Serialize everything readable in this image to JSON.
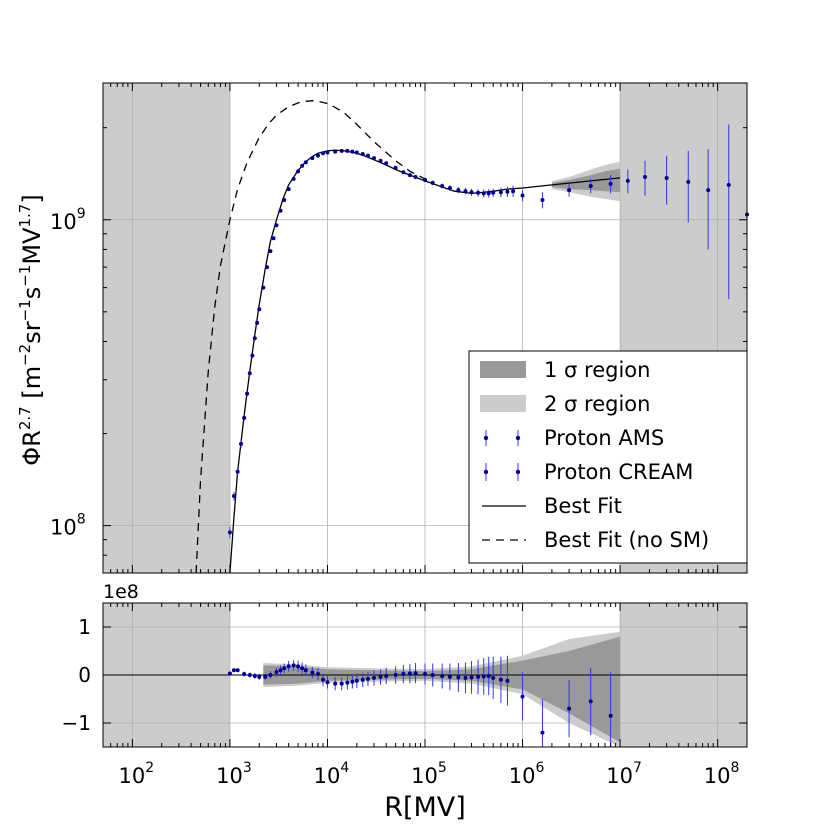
{
  "chart_data": {
    "type": "scatter",
    "x_scale": "log",
    "y_scale_top": "log",
    "xlim": [
      50,
      200000000
    ],
    "ylim_top": [
      70000000,
      2800000000
    ],
    "ylim_bottom": [
      -150000000,
      150000000
    ],
    "grid": true,
    "legend_position": "lower-right",
    "xlabel": "R[MV]",
    "ylabel_main": "ΦR",
    "ylabel_exp": "2.7",
    "ylabel_units_open": " [m",
    "ylabel_units_sup1": "−2",
    "ylabel_units_mid": "sr",
    "ylabel_units_sup2": "−1",
    "ylabel_units_mid2": "s",
    "ylabel_units_sup3": "−1",
    "ylabel_units_mid3": "MV",
    "ylabel_units_sup4": "1.7",
    "ylabel_units_close": "]",
    "bottom_offset_label": "1e8",
    "x_ticks": [
      {
        "base": "10",
        "exp": "2",
        "value": 100
      },
      {
        "base": "10",
        "exp": "3",
        "value": 1000
      },
      {
        "base": "10",
        "exp": "4",
        "value": 10000
      },
      {
        "base": "10",
        "exp": "5",
        "value": 100000
      },
      {
        "base": "10",
        "exp": "6",
        "value": 1000000
      },
      {
        "base": "10",
        "exp": "7",
        "value": 10000000
      },
      {
        "base": "10",
        "exp": "8",
        "value": 100000000
      }
    ],
    "y_ticks_top": [
      {
        "base": "10",
        "exp": "8",
        "value": 100000000
      },
      {
        "base": "10",
        "exp": "9",
        "value": 1000000000
      }
    ],
    "y_ticks_bottom": [
      {
        "label": "1",
        "value": 100000000
      },
      {
        "label": "0",
        "value": 0
      },
      {
        "label": "−1",
        "value": -100000000
      }
    ],
    "shaded_x_ranges": [
      [
        50,
        1000
      ],
      [
        10000000,
        200000000
      ]
    ],
    "legend": [
      {
        "label": "1 σ region",
        "kind": "band1"
      },
      {
        "label": "2 σ region",
        "kind": "band2"
      },
      {
        "label": "Proton AMS",
        "kind": "points"
      },
      {
        "label": "Proton CREAM",
        "kind": "points"
      },
      {
        "label": "Best Fit",
        "kind": "solid"
      },
      {
        "label": "Best Fit (no SM)",
        "kind": "dashed"
      }
    ],
    "series": [
      {
        "name": "Best Fit",
        "style": "solid",
        "x": [
          1000,
          1100,
          1200,
          1400,
          1600,
          1800,
          2000,
          2300,
          2600,
          3000,
          3500,
          4000,
          5000,
          6000,
          7000,
          8000,
          10000,
          12000,
          15000,
          20000,
          25000,
          30000,
          40000,
          50000,
          70000,
          100000,
          150000,
          200000,
          300000,
          400000,
          500000,
          700000,
          1000000,
          2000000,
          5000000,
          10000000
        ],
        "y": [
          70000000,
          106000000,
          150000000,
          230000000,
          320000000,
          420000000,
          530000000,
          690000000,
          850000000,
          1000000000,
          1170000000,
          1300000000,
          1450000000,
          1550000000,
          1610000000,
          1650000000,
          1680000000,
          1690000000,
          1680000000,
          1650000000,
          1610000000,
          1570000000,
          1510000000,
          1460000000,
          1400000000,
          1340000000,
          1280000000,
          1240000000,
          1220000000,
          1230000000,
          1240000000,
          1260000000,
          1270000000,
          1300000000,
          1340000000,
          1370000000
        ]
      },
      {
        "name": "Best Fit (no SM)",
        "style": "dashed",
        "x": [
          450,
          500,
          600,
          700,
          800,
          1000,
          1200,
          1500,
          2000,
          2500,
          3000,
          4000,
          5000,
          6000,
          7000,
          8000,
          10000,
          12000,
          15000,
          20000,
          30000,
          50000,
          70000,
          100000
        ],
        "y": [
          70000000,
          140000000,
          320000000,
          520000000,
          710000000,
          1000000000,
          1260000000,
          1540000000,
          1860000000,
          2060000000,
          2200000000,
          2340000000,
          2410000000,
          2440000000,
          2450000000,
          2440000000,
          2400000000,
          2330000000,
          2230000000,
          2050000000,
          1800000000,
          1560000000,
          1440000000,
          1360000000
        ]
      },
      {
        "name": "Proton AMS",
        "style": "points",
        "x": [
          1000,
          1100,
          1200,
          1300,
          1400,
          1500,
          1600,
          1700,
          1800,
          1900,
          2000,
          2200,
          2400,
          2600,
          2800,
          3000,
          3300,
          3600,
          4000,
          4500,
          5000,
          5500,
          6000,
          7000,
          8000,
          9000,
          10000,
          12000,
          14000,
          16000,
          18000,
          20000,
          23000,
          26000,
          30000,
          35000,
          40000,
          50000,
          60000,
          70000,
          80000,
          100000,
          120000,
          150000,
          180000,
          220000,
          260000,
          300000,
          350000,
          400000,
          450000,
          500000,
          600000,
          700000,
          800000
        ],
        "y": [
          95000000,
          125000000,
          150000000,
          185000000,
          225000000,
          270000000,
          315000000,
          360000000,
          410000000,
          460000000,
          510000000,
          600000000,
          700000000,
          790000000,
          870000000,
          960000000,
          1070000000,
          1160000000,
          1260000000,
          1360000000,
          1440000000,
          1500000000,
          1540000000,
          1590000000,
          1620000000,
          1650000000,
          1660000000,
          1670000000,
          1680000000,
          1680000000,
          1670000000,
          1660000000,
          1640000000,
          1620000000,
          1590000000,
          1560000000,
          1530000000,
          1480000000,
          1430000000,
          1400000000,
          1380000000,
          1350000000,
          1320000000,
          1290000000,
          1270000000,
          1250000000,
          1240000000,
          1230000000,
          1225000000,
          1220000000,
          1220000000,
          1225000000,
          1230000000,
          1235000000,
          1240000000
        ],
        "yerr": [
          4000000,
          4000000,
          4000000,
          5000000,
          5000000,
          5000000,
          5000000,
          6000000,
          6000000,
          6000000,
          6000000,
          7000000,
          7000000,
          8000000,
          8000000,
          9000000,
          9000000,
          10000000,
          10000000,
          11000000,
          11000000,
          12000000,
          12000000,
          12000000,
          12000000,
          13000000,
          13000000,
          13000000,
          14000000,
          14000000,
          14000000,
          14000000,
          15000000,
          15000000,
          15000000,
          16000000,
          16000000,
          17000000,
          18000000,
          19000000,
          20000000,
          21000000,
          22000000,
          24000000,
          26000000,
          28000000,
          30000000,
          32000000,
          34000000,
          36000000,
          38000000,
          40000000,
          44000000,
          48000000,
          52000000
        ]
      },
      {
        "name": "Proton CREAM",
        "style": "points",
        "x": [
          1000000,
          1600000,
          3000000,
          5000000,
          8000000,
          12000000,
          18000000,
          30000000,
          50000000,
          80000000,
          130000000,
          200000000
        ],
        "y": [
          1200000000,
          1160000000,
          1250000000,
          1290000000,
          1310000000,
          1340000000,
          1380000000,
          1370000000,
          1330000000,
          1250000000,
          1300000000,
          1040000000
        ],
        "yerr": [
          50000000,
          70000000,
          60000000,
          70000000,
          90000000,
          120000000,
          180000000,
          250000000,
          350000000,
          450000000,
          750000000,
          700000000
        ]
      }
    ],
    "bands_top": {
      "x": [
        2000000,
        3000000,
        5000000,
        7000000,
        10000000
      ],
      "sigma1_upper": [
        1320000000,
        1350000000,
        1400000000,
        1440000000,
        1470000000
      ],
      "sigma1_lower": [
        1280000000,
        1260000000,
        1250000000,
        1240000000,
        1230000000
      ],
      "sigma2_upper": [
        1340000000,
        1380000000,
        1460000000,
        1510000000,
        1550000000
      ],
      "sigma2_lower": [
        1260000000,
        1230000000,
        1190000000,
        1170000000,
        1150000000
      ]
    },
    "bands_bottom": {
      "x": [
        2200,
        5000,
        10000,
        30000,
        100000,
        300000,
        1000000,
        3000000,
        10000000
      ],
      "sigma1_upper": [
        20000000,
        18000000,
        12000000,
        10000000,
        8000000,
        12000000,
        30000000,
        50000000,
        80000000
      ],
      "sigma1_lower": [
        -20000000,
        -18000000,
        -12000000,
        -10000000,
        -8000000,
        -12000000,
        -30000000,
        -80000000,
        -140000000
      ],
      "sigma2_upper": [
        25000000,
        22000000,
        16000000,
        14000000,
        12000000,
        18000000,
        40000000,
        75000000,
        90000000
      ],
      "sigma2_lower": [
        -25000000,
        -22000000,
        -16000000,
        -14000000,
        -12000000,
        -18000000,
        -40000000,
        -100000000,
        -150000000
      ]
    },
    "residuals": {
      "x": [
        1000,
        1100,
        1200,
        1400,
        1600,
        1800,
        2000,
        2300,
        2600,
        3000,
        3300,
        3600,
        4000,
        4500,
        5000,
        5500,
        6000,
        7000,
        8000,
        9000,
        10000,
        12000,
        14000,
        16000,
        18000,
        20000,
        23000,
        26000,
        30000,
        35000,
        40000,
        50000,
        60000,
        70000,
        80000,
        100000,
        120000,
        150000,
        180000,
        220000,
        260000,
        300000,
        350000,
        400000,
        450000,
        500000,
        600000,
        700000,
        1000000,
        1600000,
        3000000,
        5000000,
        8000000
      ],
      "y": [
        3000000,
        10000000,
        10000000,
        2000000,
        0,
        -2000000,
        -4000000,
        -4000000,
        0,
        6000000,
        10000000,
        14000000,
        18000000,
        20000000,
        18000000,
        14000000,
        10000000,
        5000000,
        2000000,
        -10000000,
        -15000000,
        -18000000,
        -18000000,
        -16000000,
        -14000000,
        -12000000,
        -10000000,
        -8000000,
        -6000000,
        -4000000,
        -2000000,
        0,
        2000000,
        3000000,
        4000000,
        2000000,
        0,
        -2000000,
        -4000000,
        -5000000,
        -6000000,
        -5000000,
        -4000000,
        -3000000,
        -2000000,
        -6000000,
        -10000000,
        -12000000,
        -45000000,
        -120000000,
        -70000000,
        -55000000,
        -85000000
      ],
      "yerr": [
        4000000,
        4000000,
        4000000,
        5000000,
        5000000,
        6000000,
        6000000,
        7000000,
        8000000,
        9000000,
        10000000,
        10000000,
        11000000,
        11000000,
        12000000,
        12000000,
        12000000,
        12000000,
        13000000,
        13000000,
        13000000,
        14000000,
        14000000,
        14000000,
        14000000,
        15000000,
        15000000,
        15000000,
        16000000,
        16000000,
        17000000,
        18000000,
        19000000,
        20000000,
        21000000,
        22000000,
        24000000,
        26000000,
        28000000,
        30000000,
        32000000,
        34000000,
        36000000,
        38000000,
        40000000,
        44000000,
        48000000,
        52000000,
        50000000,
        70000000,
        60000000,
        70000000,
        90000000
      ]
    }
  }
}
